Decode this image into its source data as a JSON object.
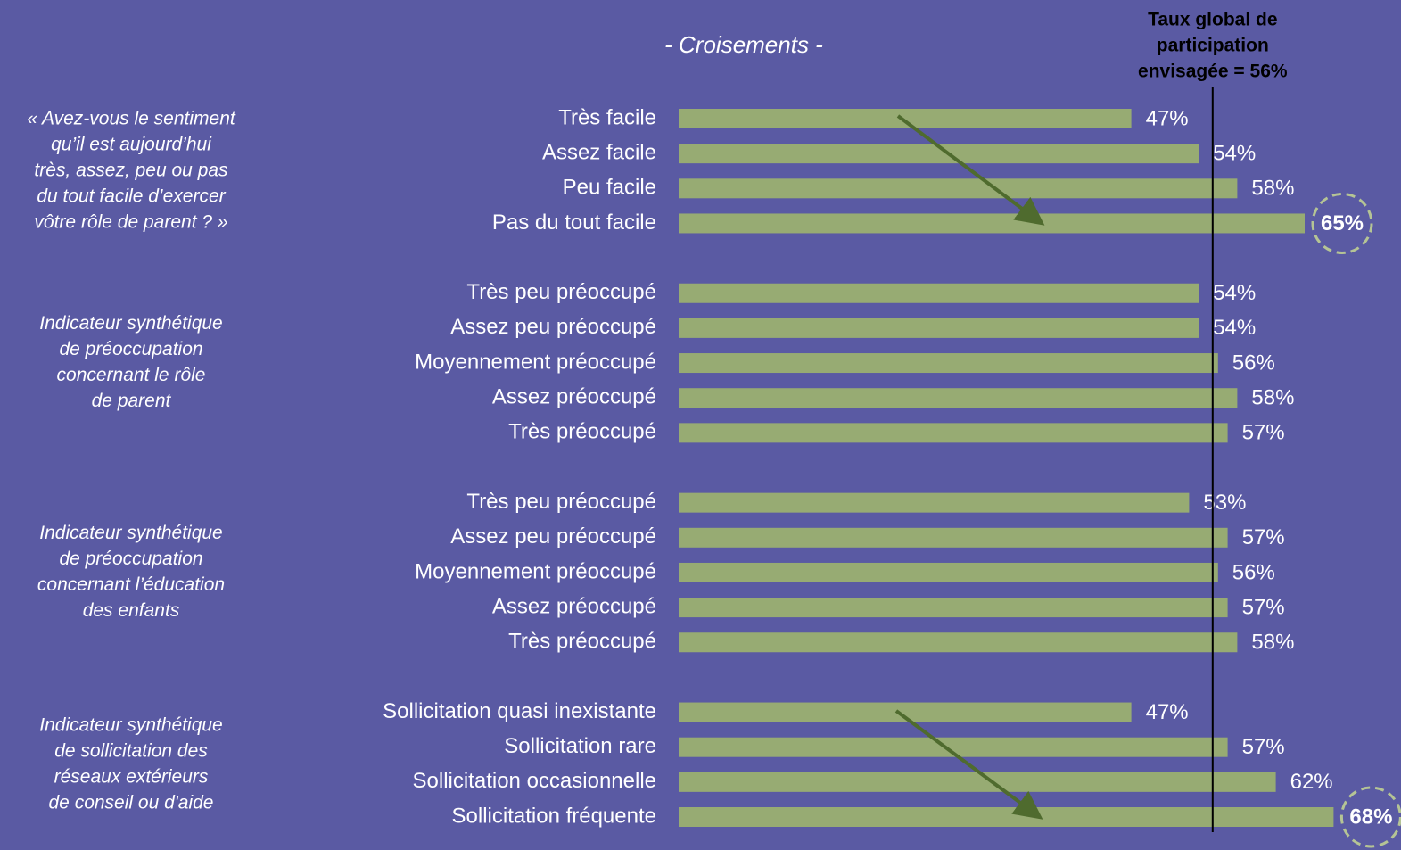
{
  "chart_data": {
    "type": "bar",
    "orientation": "horizontal",
    "title": "- Croisements -",
    "color": "#97ab73",
    "xlim": [
      0,
      100
    ],
    "reference_line": {
      "label_lines": [
        "Taux global de",
        "participation",
        "envisagée  = 56%"
      ],
      "value": 56
    },
    "groups": [
      {
        "label_lines": [
          "« Avez-vous le sentiment",
          "qu’il est aujourd’hui",
          "très, assez, peu ou pas",
          "du tout facile d’exercer",
          "vôtre rôle de parent ? »"
        ],
        "categories": [
          "Très facile",
          "Assez facile",
          "Peu facile",
          "Pas du tout facile"
        ],
        "values": [
          47,
          54,
          58,
          65
        ],
        "value_labels": [
          "47%",
          "54%",
          "58%",
          "65%"
        ],
        "highlight": [
          false,
          false,
          false,
          true
        ]
      },
      {
        "label_lines": [
          "Indicateur synthétique",
          "de préoccupation",
          "concernant le rôle",
          "de parent"
        ],
        "categories": [
          "Très peu préoccupé",
          "Assez peu préoccupé",
          "Moyennement préoccupé",
          "Assez préoccupé",
          "Très préoccupé"
        ],
        "values": [
          54,
          54,
          56,
          58,
          57
        ],
        "value_labels": [
          "54%",
          "54%",
          "56%",
          "58%",
          "57%"
        ],
        "highlight": [
          false,
          false,
          false,
          false,
          false
        ]
      },
      {
        "label_lines": [
          "Indicateur synthétique",
          "de préoccupation",
          "concernant l’éducation",
          "des enfants"
        ],
        "categories": [
          "Très peu préoccupé",
          "Assez peu préoccupé",
          "Moyennement préoccupé",
          "Assez préoccupé",
          "Très préoccupé"
        ],
        "values": [
          53,
          57,
          56,
          57,
          58
        ],
        "value_labels": [
          "53%",
          "57%",
          "56%",
          "57%",
          "58%"
        ],
        "highlight": [
          false,
          false,
          false,
          false,
          false
        ]
      },
      {
        "label_lines": [
          "Indicateur synthétique",
          "de sollicitation des",
          "réseaux extérieurs",
          "de conseil ou d'aide"
        ],
        "categories": [
          "Sollicitation quasi inexistante",
          "Sollicitation rare",
          "Sollicitation occasionnelle",
          "Sollicitation fréquente"
        ],
        "values": [
          47,
          57,
          62,
          68
        ],
        "value_labels": [
          "47%",
          "57%",
          "62%",
          "68%"
        ],
        "highlight": [
          false,
          false,
          false,
          true
        ]
      }
    ]
  }
}
